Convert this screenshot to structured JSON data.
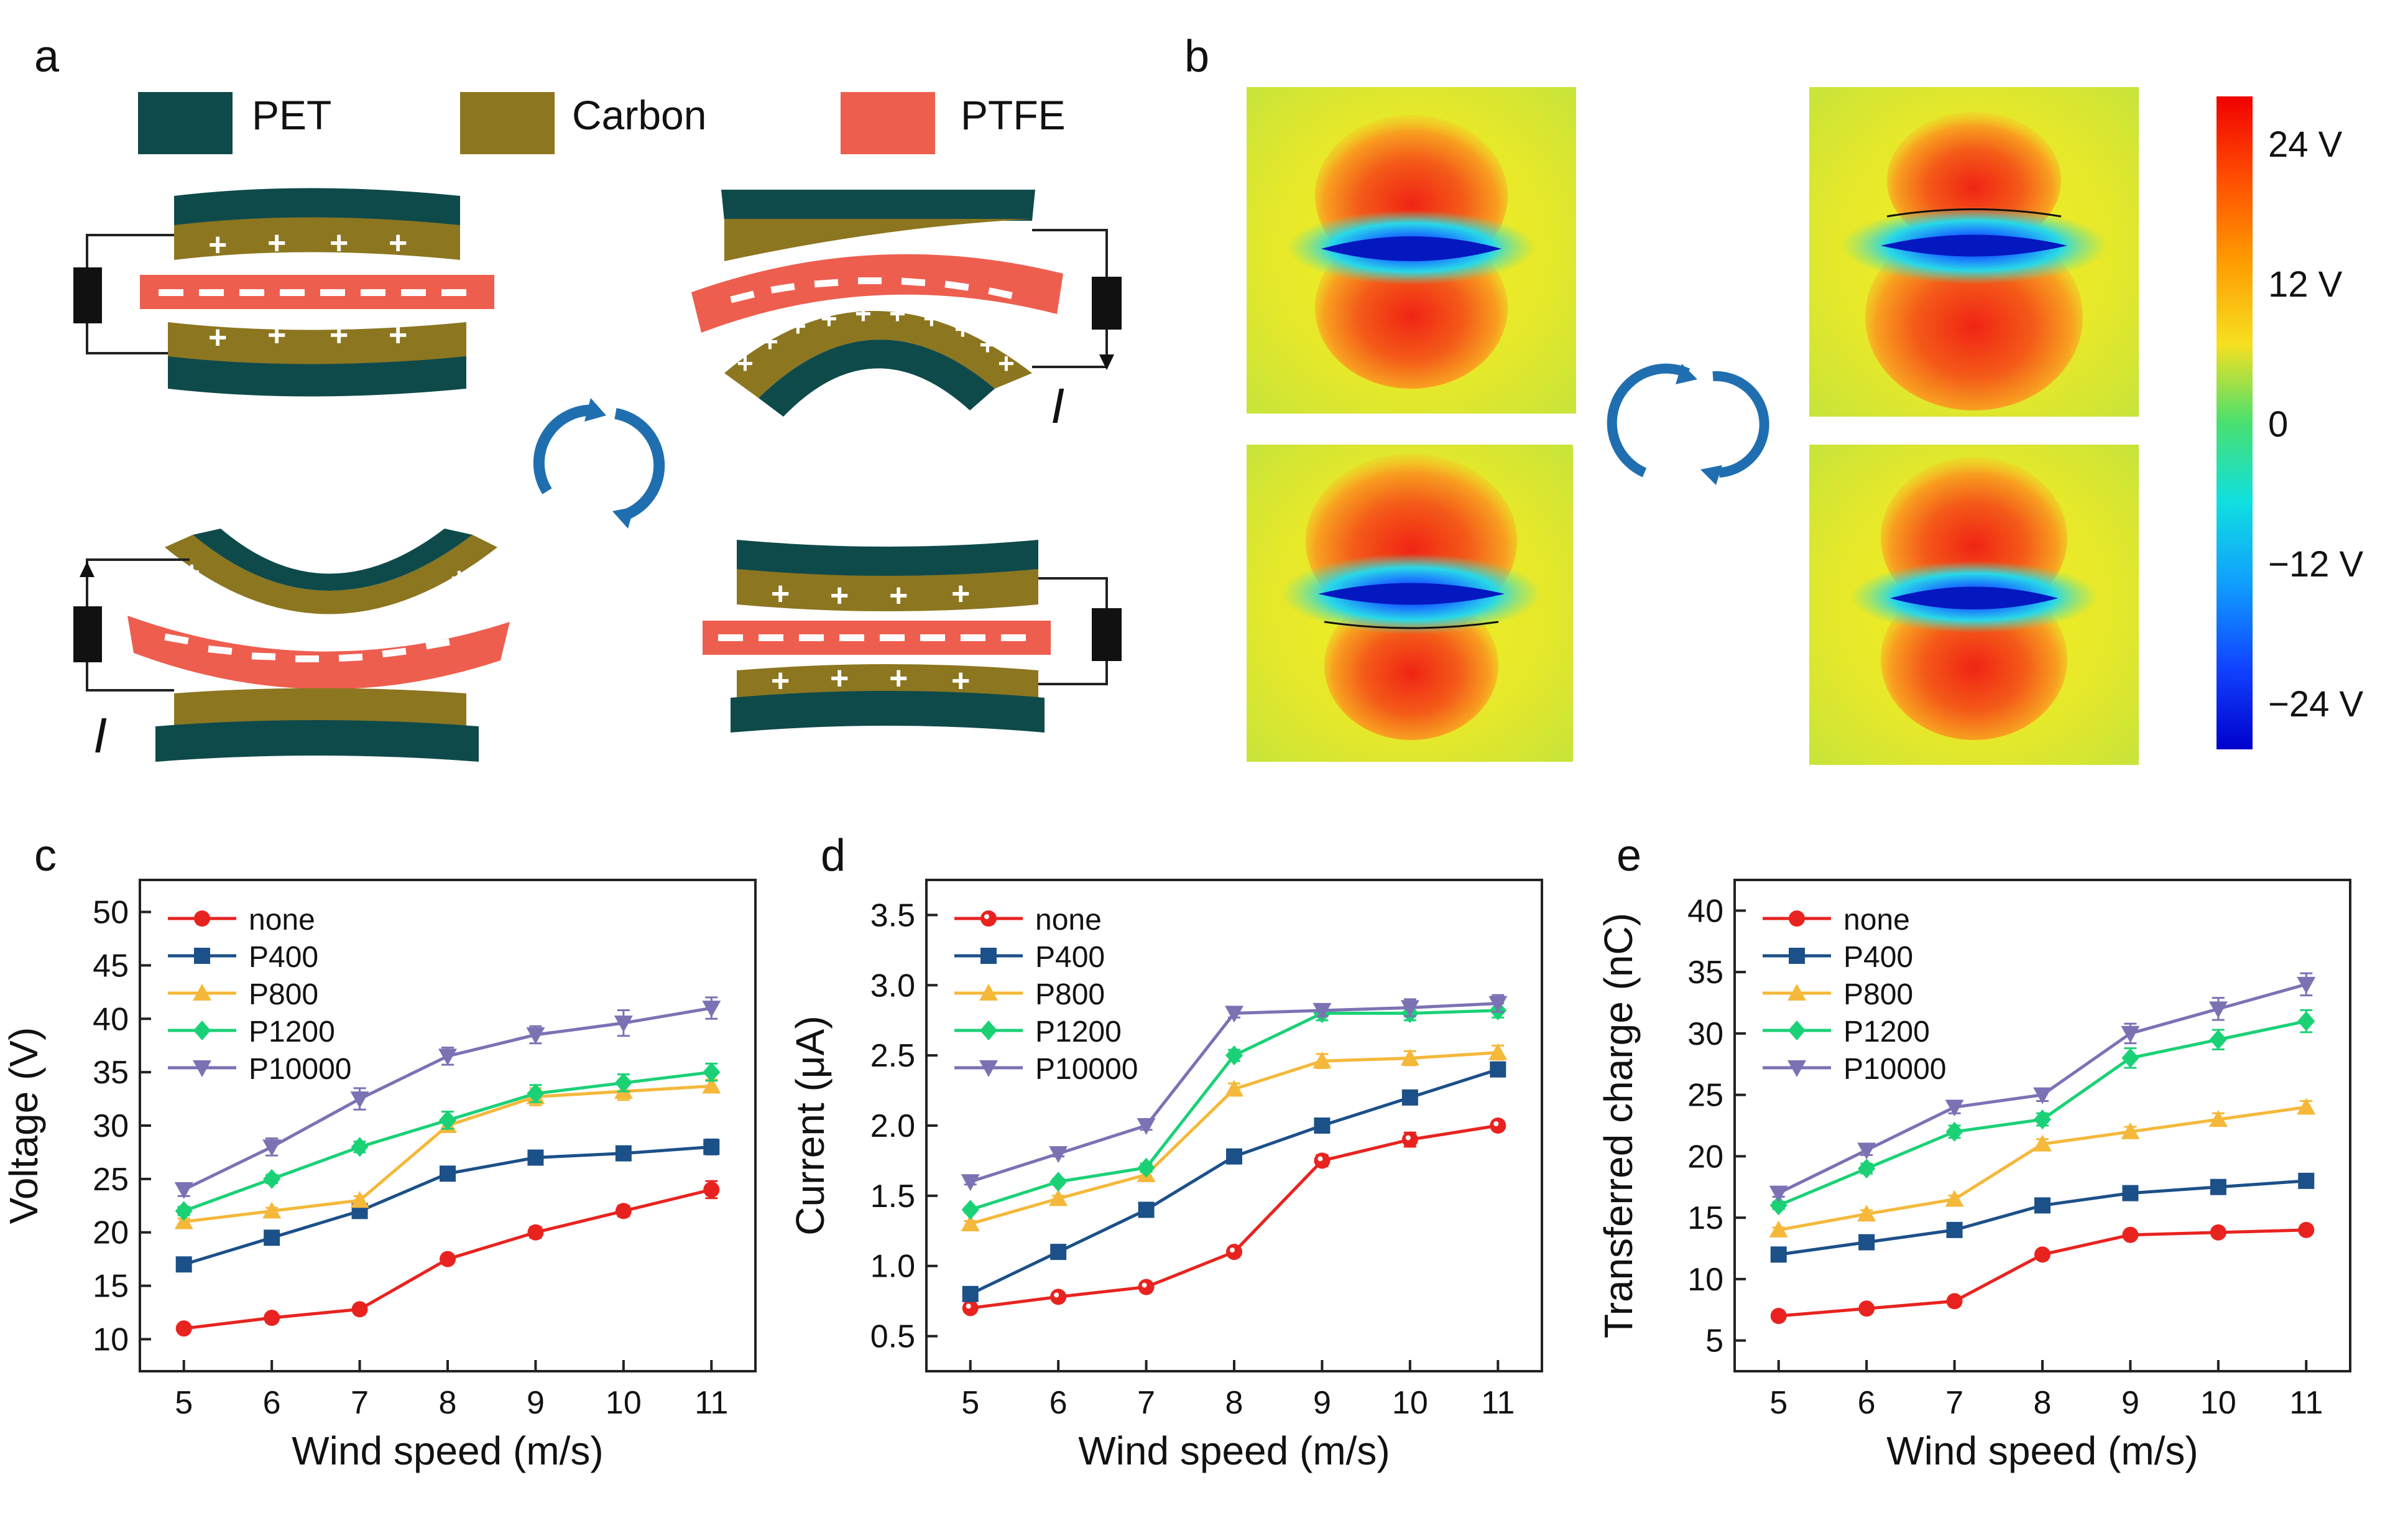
{
  "colors": {
    "pet": "#0f4a4b",
    "carbon": "#8c7620",
    "ptfe": "#ee5e4f",
    "arrow": "#1f6fb0",
    "none": "#e8231f",
    "p400": "#1c5088",
    "p800": "#f5b83a",
    "p1200": "#1bd176",
    "p10000": "#7b72b4"
  },
  "panels": {
    "a": "a",
    "b": "b",
    "c": "c",
    "d": "d",
    "e": "e"
  },
  "legend_a": {
    "pet": "PET",
    "carbon": "Carbon",
    "ptfe": "PTFE"
  },
  "current_label": "I",
  "colorbar": {
    "ticks": [
      "24 V",
      "12 V",
      "0",
      "−12 V",
      "−24 V"
    ],
    "values": [
      24,
      12,
      0,
      -12,
      -24
    ],
    "range": [
      -28,
      28
    ]
  },
  "chart_data": [
    {
      "id": "c",
      "type": "line",
      "title": "",
      "xlabel": "Wind speed (m/s)",
      "ylabel": "Voltage (V)",
      "x": [
        5,
        6,
        7,
        8,
        9,
        10,
        11
      ],
      "xlim": [
        4.5,
        11.5
      ],
      "ylim": [
        7,
        53
      ],
      "yticks": [
        10,
        15,
        20,
        25,
        30,
        35,
        40,
        45,
        50
      ],
      "series": [
        {
          "name": "none",
          "key": "none",
          "marker": "circle",
          "values": [
            11,
            12,
            12.8,
            17.5,
            20,
            22,
            24
          ],
          "err": [
            0.3,
            0.3,
            0.3,
            0.4,
            0.5,
            0.5,
            0.8
          ]
        },
        {
          "name": "P400",
          "key": "p400",
          "marker": "square",
          "values": [
            17,
            19.5,
            22,
            25.5,
            27,
            27.4,
            28
          ],
          "err": [
            0.3,
            0.4,
            0.5,
            0.6,
            0.5,
            0.5,
            0.7
          ]
        },
        {
          "name": "P800",
          "key": "p800",
          "marker": "triangle",
          "values": [
            21,
            22,
            23,
            30,
            32.7,
            33.2,
            33.7
          ],
          "err": [
            0.3,
            0.3,
            0.4,
            0.6,
            0.8,
            0.8,
            0.6
          ]
        },
        {
          "name": "P1200",
          "key": "p1200",
          "marker": "diamond",
          "values": [
            22,
            25,
            28,
            30.5,
            33,
            34,
            35
          ],
          "err": [
            0.4,
            0.4,
            0.5,
            0.8,
            0.8,
            0.8,
            0.8
          ]
        },
        {
          "name": "P10000",
          "key": "p10000",
          "marker": "invtriangle",
          "values": [
            24,
            28,
            32.5,
            36.5,
            38.5,
            39.6,
            41
          ],
          "err": [
            0.6,
            0.8,
            1.0,
            0.8,
            0.8,
            1.2,
            1.0
          ]
        }
      ]
    },
    {
      "id": "d",
      "type": "line",
      "title": "",
      "xlabel": "Wind speed (m/s)",
      "ylabel": "Current (μA)",
      "x": [
        5,
        6,
        7,
        8,
        9,
        10,
        11
      ],
      "xlim": [
        4.5,
        11.5
      ],
      "ylim": [
        0.25,
        3.75
      ],
      "yticks": [
        0.5,
        1.0,
        1.5,
        2.0,
        2.5,
        3.0,
        3.5
      ],
      "series": [
        {
          "name": "none",
          "key": "none",
          "marker": "opencircle",
          "values": [
            0.7,
            0.78,
            0.85,
            1.1,
            1.75,
            1.9,
            2.0
          ],
          "err": [
            0.02,
            0.02,
            0.02,
            0.03,
            0.04,
            0.05,
            0.03
          ]
        },
        {
          "name": "P400",
          "key": "p400",
          "marker": "square",
          "values": [
            0.8,
            1.1,
            1.4,
            1.78,
            2.0,
            2.2,
            2.4
          ],
          "err": [
            0.02,
            0.02,
            0.02,
            0.03,
            0.03,
            0.04,
            0.04
          ]
        },
        {
          "name": "P800",
          "key": "p800",
          "marker": "triangle",
          "values": [
            1.3,
            1.48,
            1.65,
            2.26,
            2.46,
            2.48,
            2.52
          ],
          "err": [
            0.02,
            0.02,
            0.03,
            0.04,
            0.05,
            0.05,
            0.05
          ]
        },
        {
          "name": "P1200",
          "key": "p1200",
          "marker": "diamond",
          "values": [
            1.4,
            1.6,
            1.7,
            2.5,
            2.8,
            2.8,
            2.82
          ],
          "err": [
            0.02,
            0.02,
            0.03,
            0.04,
            0.05,
            0.05,
            0.05
          ]
        },
        {
          "name": "P10000",
          "key": "p10000",
          "marker": "invtriangle",
          "values": [
            1.6,
            1.8,
            2.0,
            2.8,
            2.82,
            2.84,
            2.87
          ],
          "err": [
            0.02,
            0.02,
            0.03,
            0.03,
            0.04,
            0.06,
            0.06
          ]
        }
      ]
    },
    {
      "id": "e",
      "type": "line",
      "title": "",
      "xlabel": "Wind speed (m/s)",
      "ylabel": "Transferred charge (nC)",
      "x": [
        5,
        6,
        7,
        8,
        9,
        10,
        11
      ],
      "xlim": [
        4.5,
        11.5
      ],
      "ylim": [
        2.5,
        42.5
      ],
      "yticks": [
        5,
        10,
        15,
        20,
        25,
        30,
        35,
        40
      ],
      "series": [
        {
          "name": "none",
          "key": "none",
          "marker": "circle",
          "values": [
            7,
            7.6,
            8.2,
            12,
            13.6,
            13.8,
            14
          ],
          "err": [
            0.2,
            0.2,
            0.2,
            0.3,
            0.3,
            0.3,
            0.3
          ]
        },
        {
          "name": "P400",
          "key": "p400",
          "marker": "square",
          "values": [
            12,
            13,
            14,
            16,
            17,
            17.5,
            18
          ],
          "err": [
            0.2,
            0.2,
            0.3,
            0.3,
            0.3,
            0.3,
            0.3
          ]
        },
        {
          "name": "P800",
          "key": "p800",
          "marker": "triangle",
          "values": [
            14,
            15.3,
            16.5,
            21,
            22,
            23,
            24
          ],
          "err": [
            0.2,
            0.3,
            0.3,
            0.4,
            0.4,
            0.5,
            0.5
          ]
        },
        {
          "name": "P1200",
          "key": "p1200",
          "marker": "diamond",
          "values": [
            16,
            19,
            22,
            23,
            28,
            29.5,
            31
          ],
          "err": [
            0.3,
            0.4,
            0.5,
            0.5,
            0.8,
            0.8,
            0.9
          ]
        },
        {
          "name": "P10000",
          "key": "p10000",
          "marker": "invtriangle",
          "values": [
            17,
            20.5,
            24,
            25,
            30,
            32,
            34
          ],
          "err": [
            0.3,
            0.4,
            0.5,
            0.5,
            0.8,
            0.9,
            0.9
          ]
        }
      ]
    }
  ]
}
